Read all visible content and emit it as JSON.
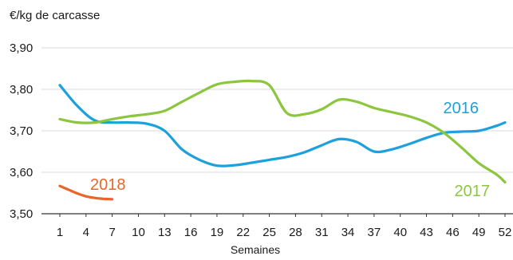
{
  "chart_data": {
    "type": "line",
    "ylabel": "€/kg de carcasse",
    "xlabel": "Semaines",
    "ylim": [
      3.5,
      3.9
    ],
    "yticks": [
      "3,50",
      "3,60",
      "3,70",
      "3,80",
      "3,90"
    ],
    "xlim": [
      0,
      52.5
    ],
    "xticks": [
      1,
      4,
      7,
      10,
      13,
      16,
      19,
      22,
      25,
      28,
      31,
      34,
      37,
      40,
      43,
      46,
      49,
      52
    ],
    "grid": true,
    "series": [
      {
        "name": "2016",
        "color": "#1ea0dc",
        "x": [
          1,
          3,
          5,
          7,
          9,
          11,
          13,
          15,
          17,
          19,
          21,
          23,
          25,
          27,
          29,
          31,
          33,
          35,
          37,
          39,
          41,
          43,
          45,
          47,
          49,
          51,
          52
        ],
        "y": [
          3.81,
          3.76,
          3.725,
          3.72,
          3.72,
          3.717,
          3.7,
          3.655,
          3.63,
          3.616,
          3.617,
          3.623,
          3.63,
          3.637,
          3.648,
          3.665,
          3.68,
          3.673,
          3.65,
          3.655,
          3.668,
          3.683,
          3.695,
          3.698,
          3.7,
          3.712,
          3.72
        ]
      },
      {
        "name": "2017",
        "color": "#8cc63f",
        "x": [
          1,
          3,
          5,
          7,
          9,
          11,
          13,
          15,
          17,
          19,
          21,
          23,
          25,
          27,
          29,
          31,
          33,
          35,
          37,
          39,
          41,
          43,
          45,
          47,
          49,
          51,
          52
        ],
        "y": [
          3.728,
          3.72,
          3.72,
          3.728,
          3.735,
          3.74,
          3.748,
          3.77,
          3.792,
          3.812,
          3.818,
          3.82,
          3.81,
          3.743,
          3.74,
          3.752,
          3.775,
          3.77,
          3.755,
          3.745,
          3.735,
          3.72,
          3.695,
          3.66,
          3.622,
          3.595,
          3.576
        ]
      },
      {
        "name": "2018",
        "color": "#e8662c",
        "x": [
          1,
          2,
          3,
          4,
          5,
          6,
          7
        ],
        "y": [
          3.567,
          3.558,
          3.549,
          3.542,
          3.538,
          3.536,
          3.535
        ]
      }
    ]
  }
}
